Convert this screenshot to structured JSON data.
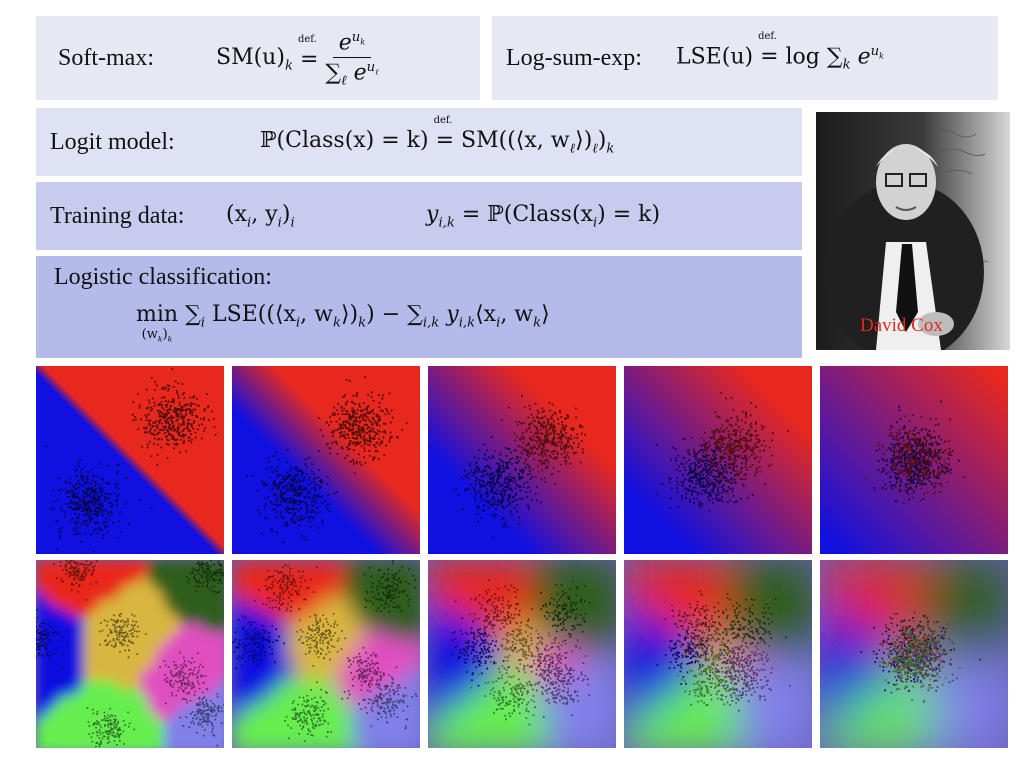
{
  "figure": {
    "title": "",
    "subtitle": ""
  },
  "softmax": {
    "label": "Soft-max:",
    "lhs": "SM(u)",
    "lhs_sub": "k",
    "def": "def.",
    "num_base": "e",
    "num_sup": "u",
    "num_sup_sub": "k",
    "den_sum": "∑",
    "den_sum_sub": "ℓ",
    "den_base": "e",
    "den_sup": "u",
    "den_sup_sub": "ℓ"
  },
  "lse": {
    "label": "Log-sum-exp:",
    "lhs": "LSE(u)",
    "def": "def.",
    "rhs": "log ∑",
    "rhs_sub": "k",
    "rhs_base": "e",
    "rhs_sup": "u",
    "rhs_sup_sub": "k"
  },
  "logit": {
    "label": "Logit model:",
    "lhs": "ℙ(Class(x) = k)",
    "def": "def.",
    "rhs": "SM((⟨x, w",
    "rhs_sub": "ℓ",
    "rhs_tail": "⟩)",
    "rhs_tail_sub": "ℓ",
    "rhs_end": ")",
    "rhs_end_sub": "k"
  },
  "training": {
    "label": "Training data:",
    "pair": "(x",
    "pair_sub": "i",
    "pair_mid": ", y",
    "pair_mid_sub": "i",
    "pair_end": ")",
    "pair_end_sub": "i",
    "y": "y",
    "y_sub": "i,k",
    "rhs": " = ℙ(Class(x",
    "rhs_sub": "i",
    "rhs_end": ") = k)"
  },
  "logistic": {
    "label": "Logistic classification:",
    "min": "min",
    "min_sub": "(w",
    "min_sub_k": "k",
    "min_sub_end": ")",
    "min_sub_end_k": "k",
    "sum1": "∑",
    "sum1_sub": "i",
    "term1": " LSE((⟨x",
    "term1_sub": "i",
    "term1_mid": ", w",
    "term1_mid_sub": "k",
    "term1_end": "⟩)",
    "term1_end_sub": "k",
    "term1_close": ") − ",
    "sum2": "∑",
    "sum2_sub": "i,k",
    "term2": " y",
    "term2_sub": "i,k",
    "term2_mid": "⟨x",
    "term2_mid_sub": "i",
    "term2_mid2": ", w",
    "term2_mid2_sub": "k",
    "term2_end": "⟩"
  },
  "portrait": {
    "caption": "David Cox"
  },
  "colors": {
    "formula_box": "#e6e8f4",
    "logit_box": "#dfe2f5",
    "training_box": "#c7ccef",
    "logistic_box": "#b4bbea",
    "two_class": [
      "#1010e0",
      "#e8281e"
    ],
    "multi_class": [
      "#1010e0",
      "#e8281e",
      "#2d5d1e",
      "#d9b640",
      "#e050c0",
      "#8080e8",
      "#66ee50"
    ],
    "caption": "#e0281f"
  },
  "scatter_rows": [
    {
      "name": "two-class",
      "panels": 5,
      "separation": [
        1.0,
        0.8,
        0.55,
        0.35,
        0.05
      ]
    },
    {
      "name": "multi-class",
      "panels": 5,
      "separation": [
        1.0,
        0.8,
        0.5,
        0.35,
        0.1
      ]
    }
  ]
}
